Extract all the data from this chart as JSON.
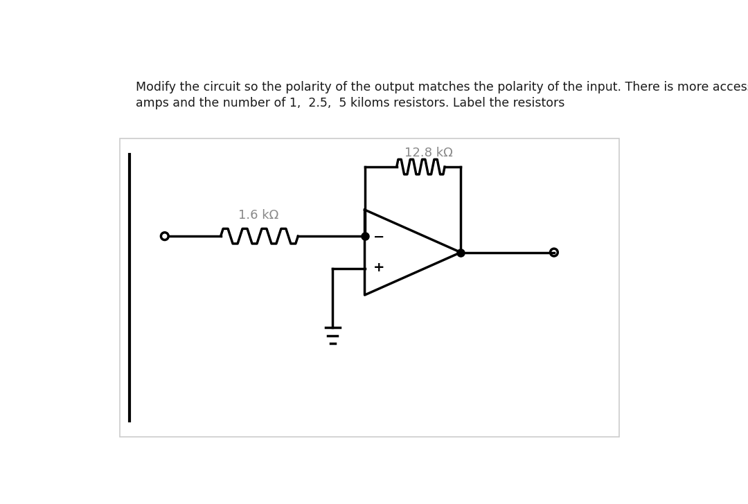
{
  "title_line1": "Modify the circuit so the polarity of the output matches the polarity of the input. There is more access to op",
  "title_line2": "amps and the number of 1,  2.5,  5 kiloms resistors. Label the resistors",
  "r1_label": "1.6 kΩ",
  "r2_label": "12.8 kΩ",
  "bg_color": "#ffffff",
  "panel_bg": "#ffffff",
  "line_color": "#000000",
  "text_color": "#1a1a1a",
  "label_color": "#888888"
}
